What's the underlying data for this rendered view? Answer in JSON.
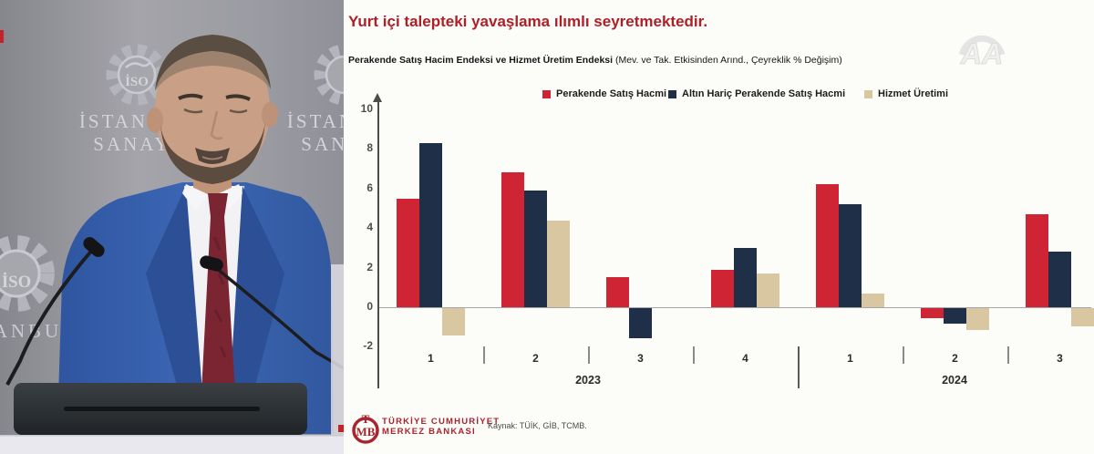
{
  "photo": {
    "backdrop": {
      "org_line1": "İSTANBUL",
      "org_line2": "SANAYİ",
      "logo_monogram": "İSO"
    }
  },
  "slide": {
    "title": "Yurt içi talepteki yavaşlama ılımlı seyretmektedir.",
    "subtitle_bold": "Perakende Satış Hacim Endeksi ve Hizmet Üretim Endeksi",
    "subtitle_rest": " (Mev. ve Tak. Etkisinden Arınd., Çeyreklik % Değişim)",
    "source": "Kaynak: TÜİK, GİB, TCMB.",
    "footer_bank_line1": "TÜRKİYE CUMHURİYET",
    "footer_bank_line2": "MERKEZ BANKASI",
    "footer_logo_monogram": "TMB",
    "watermark": "AA",
    "accent_color": "#b01f27"
  },
  "chart_data": {
    "type": "bar",
    "title": "Perakende Satış Hacim Endeksi ve Hizmet Üretim Endeksi (Mev. ve Tak. Etkisinden Arınd., Çeyreklik % Değişim)",
    "categories": [
      "1",
      "2",
      "3",
      "4",
      "1",
      "2",
      "3"
    ],
    "year_groups": [
      {
        "label": "2023",
        "quarters": [
          "1",
          "2",
          "3",
          "4"
        ]
      },
      {
        "label": "2024",
        "quarters": [
          "1",
          "2",
          "3"
        ]
      }
    ],
    "series": [
      {
        "name": "Perakende Satış Hacmi",
        "color": "#ce2434",
        "values": [
          5.5,
          6.8,
          1.5,
          1.9,
          6.2,
          -0.5,
          4.7
        ]
      },
      {
        "name": "Altın Hariç Perakende Satış Hacmi",
        "color": "#1f2f47",
        "values": [
          8.3,
          5.9,
          -1.5,
          3.0,
          5.2,
          -0.8,
          2.8
        ]
      },
      {
        "name": "Hizmet Üretimi",
        "color": "#d8c7a1",
        "values": [
          -1.4,
          4.4,
          0.0,
          1.7,
          0.7,
          -1.1,
          -0.9
        ]
      }
    ],
    "ylim": [
      -2,
      10
    ],
    "yticks": [
      10,
      8,
      6,
      4,
      2,
      0,
      -2
    ],
    "grid": false,
    "legend_position": "top"
  }
}
